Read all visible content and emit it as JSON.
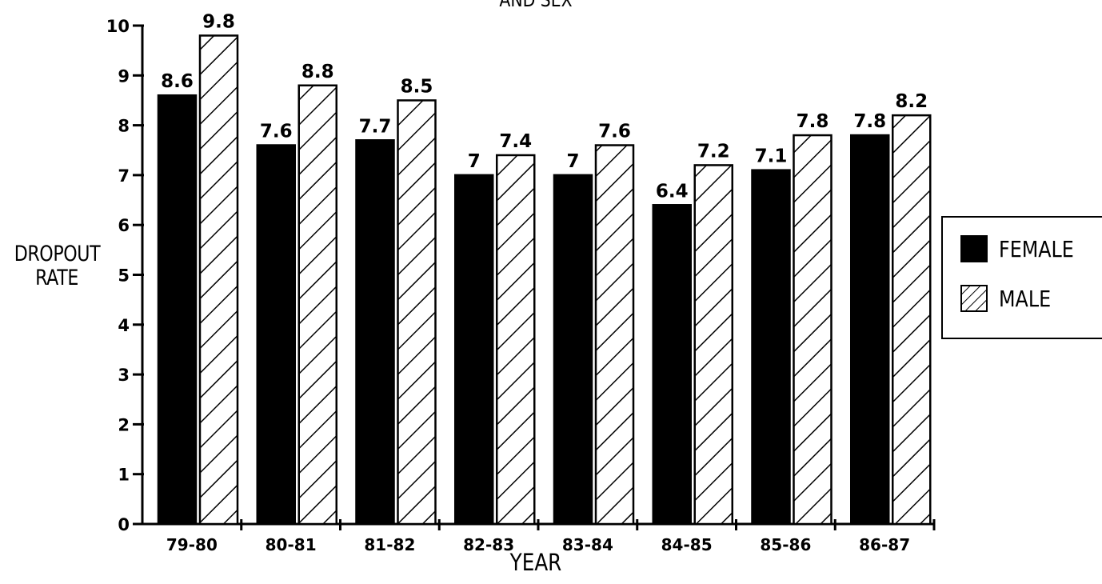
{
  "chart_data": {
    "type": "bar",
    "title": "AND SEX",
    "xlabel": "YEAR",
    "ylabel_lines": [
      "DROPOUT",
      "RATE"
    ],
    "ylim": [
      0,
      10
    ],
    "yticks": [
      "0",
      "1",
      "2",
      "3",
      "4",
      "5",
      "6",
      "7",
      "8",
      "9",
      "10"
    ],
    "categories": [
      "79-80",
      "80-81",
      "81-82",
      "82-83",
      "83-84",
      "84-85",
      "85-86",
      "86-87"
    ],
    "series": [
      {
        "name": "FEMALE",
        "fill": "solid",
        "values": [
          8.6,
          7.6,
          7.7,
          7,
          7,
          6.4,
          7.1,
          7.8
        ],
        "labels": [
          "8.6",
          "7.6",
          "7.7",
          "7",
          "7",
          "6.4",
          "7.1",
          "7.8"
        ]
      },
      {
        "name": "MALE",
        "fill": "hatch",
        "values": [
          9.8,
          8.8,
          8.5,
          7.4,
          7.6,
          7.2,
          7.8,
          8.2
        ],
        "labels": [
          "9.8",
          "8.8",
          "8.5",
          "7.4",
          "7.6",
          "7.2",
          "7.8",
          "8.2"
        ]
      }
    ],
    "legend_position": "right",
    "grid": false,
    "colors": {
      "ink": "#000000",
      "background": "#ffffff"
    }
  }
}
